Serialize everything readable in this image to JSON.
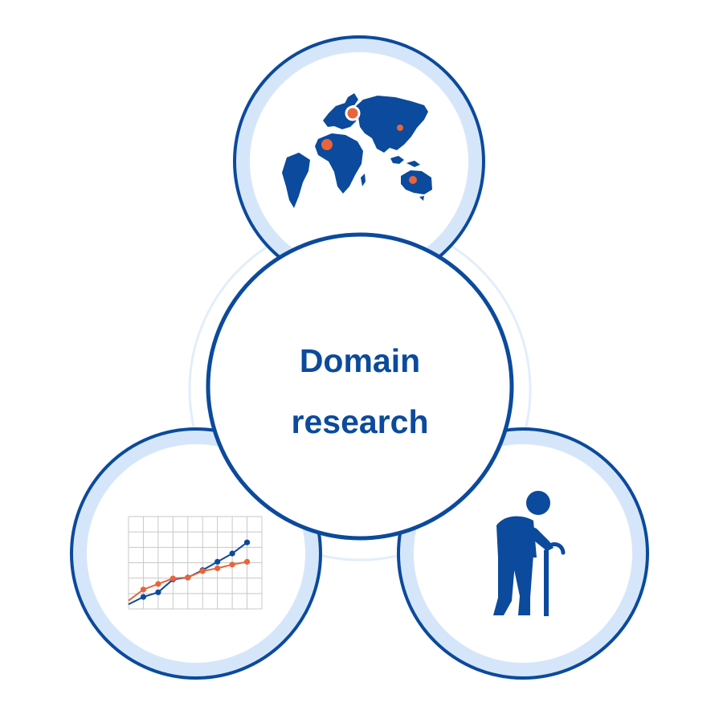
{
  "center": {
    "title_line1": "Domain",
    "title_line2": "research"
  },
  "satellites": [
    {
      "icon": "world-map-icon"
    },
    {
      "icon": "line-chart-icon"
    },
    {
      "icon": "elderly-person-with-cane-icon"
    }
  ],
  "colors": {
    "primary": "#0b4a9c",
    "ring_fill": "#d6e6fa",
    "ring_faint": "#e2eefb",
    "accent": "#e8643a",
    "grid": "#c8c8c8",
    "background": "#ffffff"
  },
  "chart_data": {
    "type": "line",
    "title": "",
    "xlabel": "",
    "ylabel": "",
    "x": [
      0,
      1,
      2,
      3,
      4,
      5,
      6,
      7,
      8
    ],
    "series": [
      {
        "color": "#0b4a9c",
        "values": [
          0.5,
          1.3,
          1.8,
          3.2,
          3.4,
          4.2,
          5.1,
          6.0,
          7.2
        ]
      },
      {
        "color": "#e8643a",
        "values": [
          0.9,
          2.1,
          2.7,
          3.3,
          3.4,
          4.1,
          4.4,
          4.8,
          5.1
        ]
      }
    ],
    "xlim": [
      0,
      9
    ],
    "ylim": [
      0,
      10
    ],
    "grid": true
  }
}
